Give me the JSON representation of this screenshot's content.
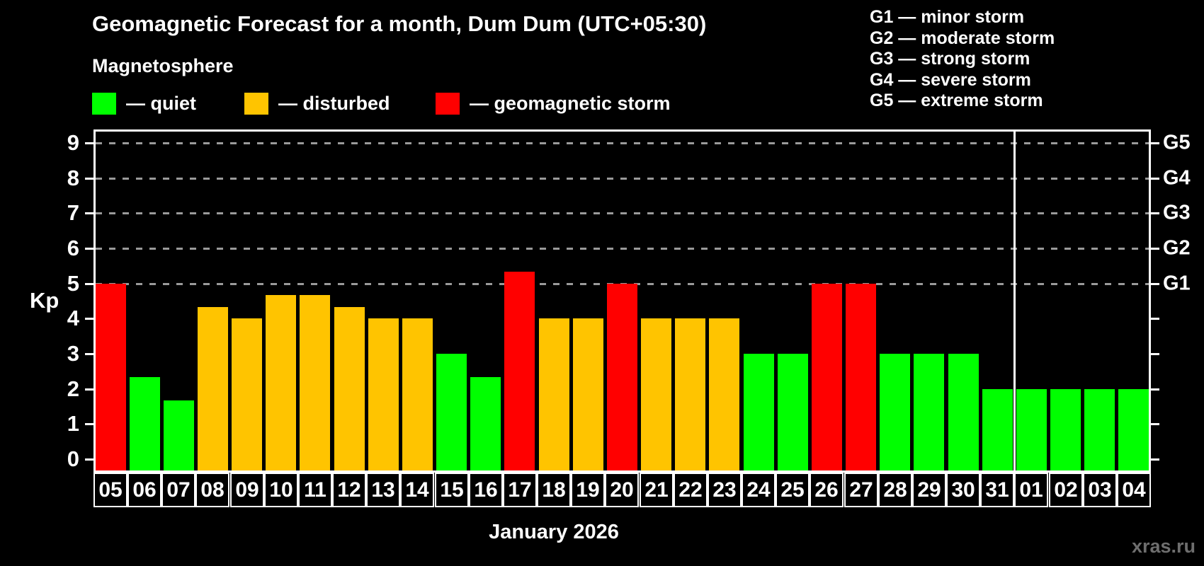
{
  "page": {
    "title": "Geomagnetic Forecast for a month, Dum Dum (UTC+05:30)",
    "subtitle": "Magnetosphere",
    "watermark": "xras.ru"
  },
  "legend": {
    "items": [
      {
        "key": "quiet",
        "label": "— quiet",
        "color": "#00ff00"
      },
      {
        "key": "disturbed",
        "label": "— disturbed",
        "color": "#ffc400"
      },
      {
        "key": "storm",
        "label": "— geomagnetic storm",
        "color": "#ff0000"
      }
    ]
  },
  "storm_scale_legend": {
    "items": [
      {
        "label": "G1 — minor storm"
      },
      {
        "label": "G2 — moderate storm"
      },
      {
        "label": "G3 — strong storm"
      },
      {
        "label": "G4 — severe storm"
      },
      {
        "label": "G5 — extreme storm"
      }
    ]
  },
  "chart_data": {
    "type": "bar",
    "title": "Geomagnetic Forecast for a month, Dum Dum (UTC+05:30)",
    "subtitle": "Magnetosphere",
    "ylabel": "Kp",
    "xlabel": "January 2026",
    "month_label": "January 2026",
    "ylim": [
      0,
      9
    ],
    "yticks": [
      0,
      1,
      2,
      3,
      4,
      5,
      6,
      7,
      8,
      9
    ],
    "gridlines_at_kp": [
      5,
      6,
      7,
      8,
      9
    ],
    "grid_style": "dashed gray horizontal lines at storm levels only",
    "legend_position": "top-left",
    "right_axis_labels": [
      {
        "label": "G1",
        "kp": 5
      },
      {
        "label": "G2",
        "kp": 6
      },
      {
        "label": "G3",
        "kp": 7
      },
      {
        "label": "G4",
        "kp": 8
      },
      {
        "label": "G5",
        "kp": 9
      }
    ],
    "categories": [
      "05",
      "06",
      "07",
      "08",
      "09",
      "10",
      "11",
      "12",
      "13",
      "14",
      "15",
      "16",
      "17",
      "18",
      "19",
      "20",
      "21",
      "22",
      "23",
      "24",
      "25",
      "26",
      "27",
      "28",
      "29",
      "30",
      "31",
      "01",
      "02",
      "03",
      "04"
    ],
    "values": [
      5,
      2.33,
      1.67,
      4.33,
      4,
      4.67,
      4.67,
      4.33,
      4,
      4,
      3,
      2.33,
      5.33,
      4,
      4,
      5,
      4,
      4,
      4,
      3,
      3,
      5,
      5,
      3,
      3,
      3,
      2,
      2,
      2,
      2,
      2
    ],
    "statuses": [
      "storm",
      "quiet",
      "quiet",
      "disturbed",
      "disturbed",
      "disturbed",
      "disturbed",
      "disturbed",
      "disturbed",
      "disturbed",
      "quiet",
      "quiet",
      "storm",
      "disturbed",
      "disturbed",
      "storm",
      "disturbed",
      "disturbed",
      "disturbed",
      "quiet",
      "quiet",
      "storm",
      "storm",
      "quiet",
      "quiet",
      "quiet",
      "quiet",
      "quiet",
      "quiet",
      "quiet",
      "quiet"
    ],
    "colors": {
      "quiet": "#00ff00",
      "disturbed": "#ffc400",
      "storm": "#ff0000"
    },
    "month_separator_after_index": 26
  }
}
